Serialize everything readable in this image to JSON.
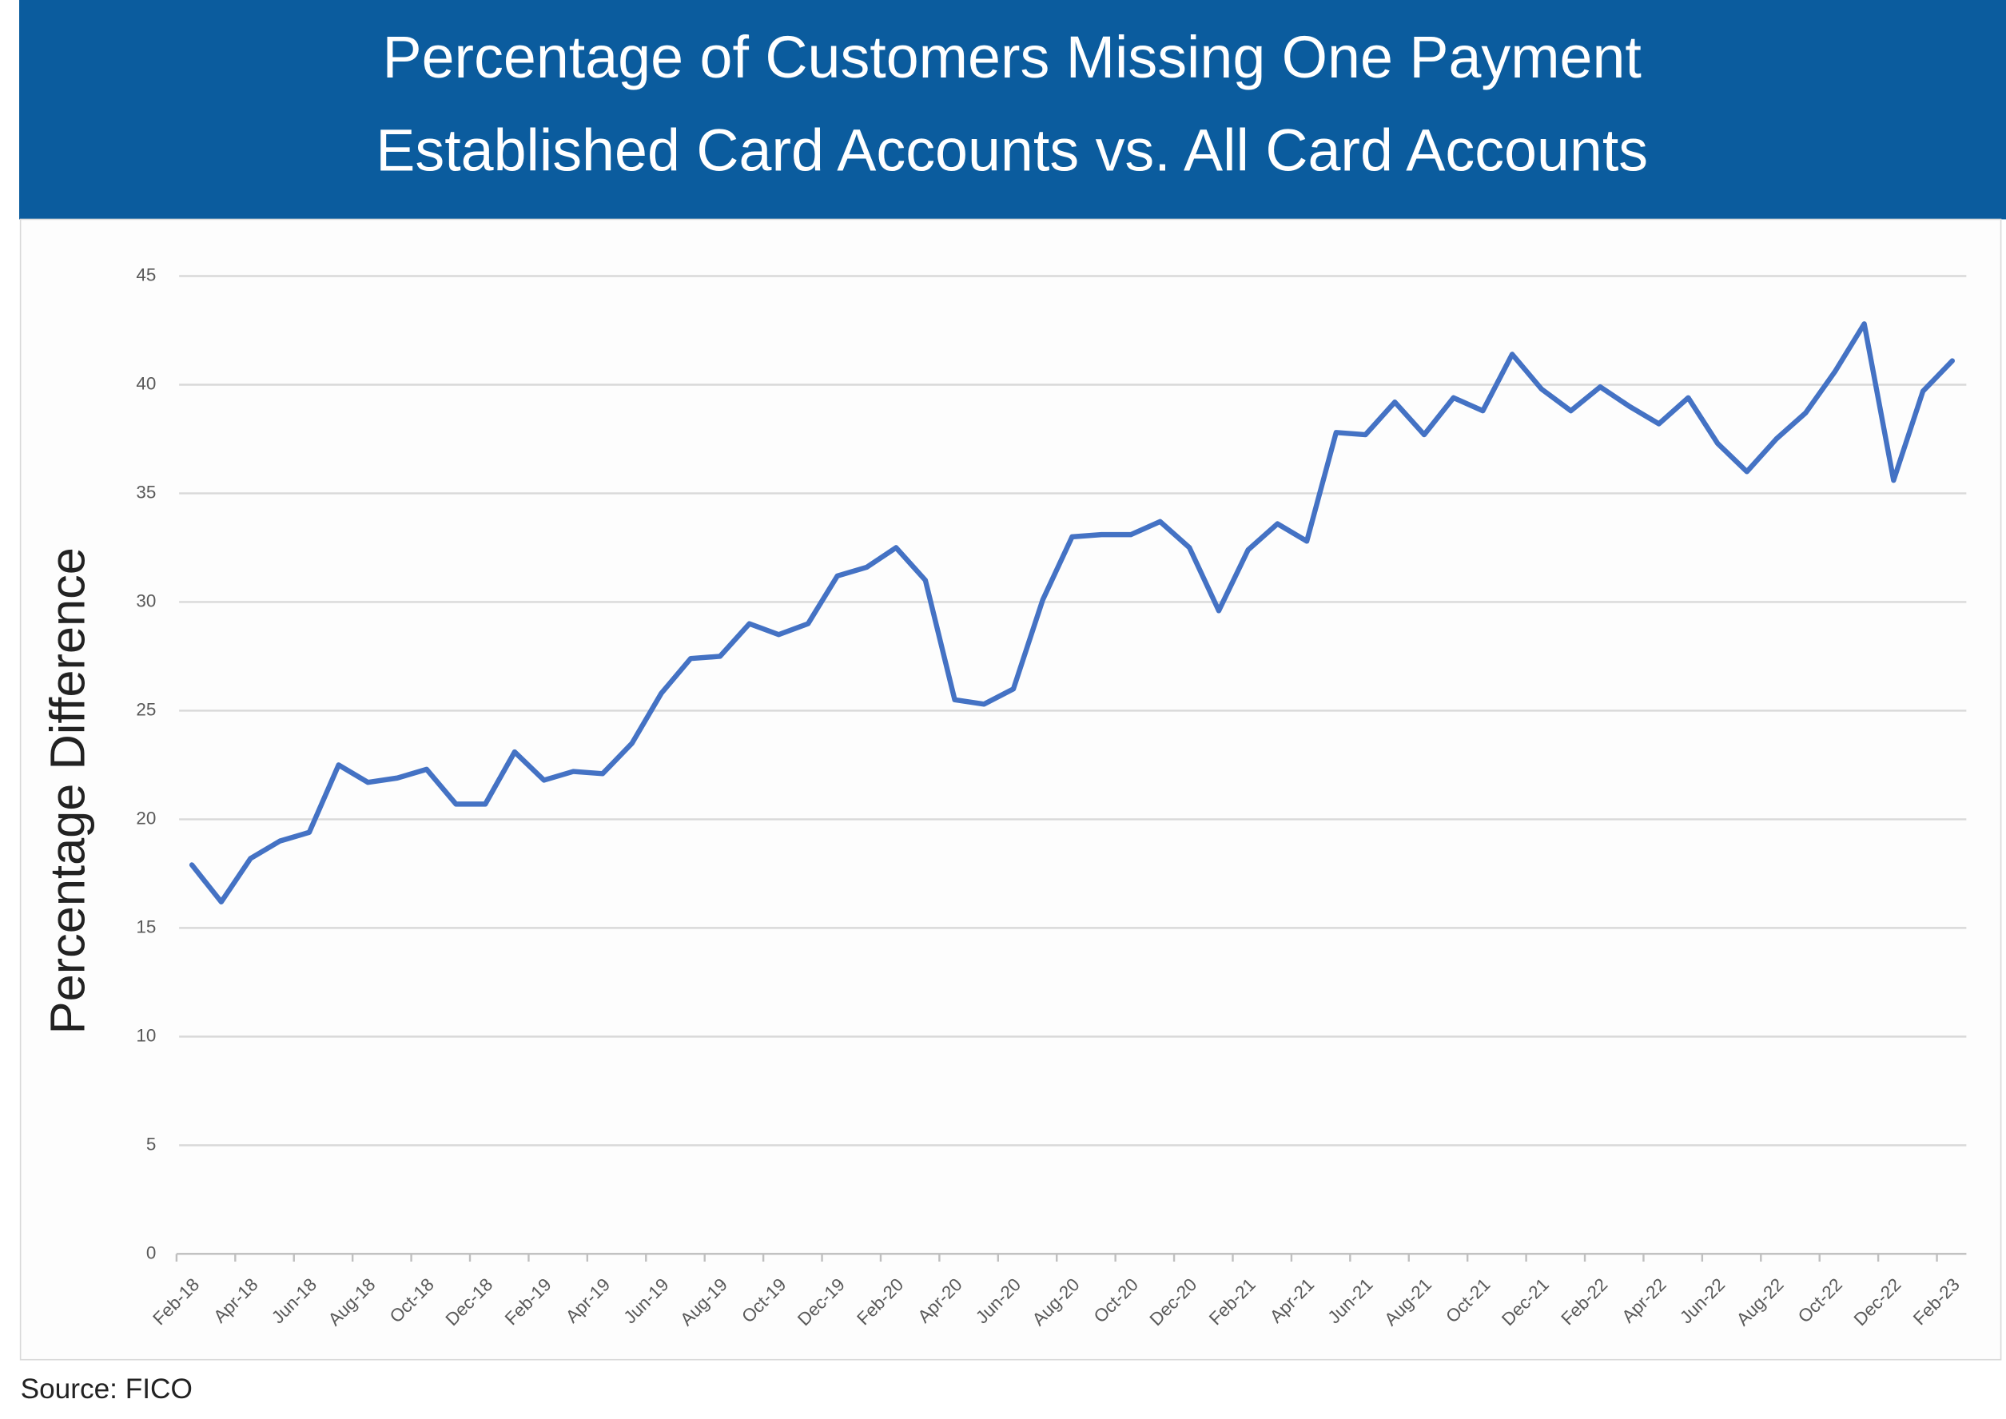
{
  "chart_data": {
    "type": "line",
    "title": "Percentage of Customers Missing One Payment",
    "subtitle": "Established Card Accounts vs. All Card Accounts",
    "y_label": "Percentage Difference",
    "source": "Source: FICO",
    "categories": [
      "Feb-18",
      null,
      "Apr-18",
      null,
      "Jun-18",
      null,
      "Aug-18",
      null,
      "Oct-18",
      null,
      "Dec-18",
      null,
      "Feb-19",
      null,
      "Apr-19",
      null,
      "Jun-19",
      null,
      "Aug-19",
      null,
      "Oct-19",
      null,
      "Dec-19",
      null,
      "Feb-20",
      null,
      "Apr-20",
      null,
      "Jun-20",
      null,
      "Aug-20",
      null,
      "Oct-20",
      null,
      "Dec-20",
      null,
      "Feb-21",
      null,
      "Apr-21",
      null,
      "Jun-21",
      null,
      "Aug-21",
      null,
      "Oct-21",
      null,
      "Dec-21",
      null,
      "Feb-22",
      null,
      "Apr-22",
      null,
      "Jun-22",
      null,
      "Aug-22",
      null,
      "Oct-22",
      null,
      "Dec-22",
      null,
      "Feb-23"
    ],
    "series": [
      {
        "color": "#4472c4",
        "values": [
          17.9,
          16.2,
          18.2,
          19.0,
          19.4,
          22.5,
          21.7,
          21.9,
          22.3,
          20.7,
          20.7,
          23.1,
          21.8,
          22.2,
          22.1,
          23.5,
          25.8,
          27.4,
          27.5,
          29.0,
          28.5,
          29.0,
          31.2,
          31.6,
          32.5,
          31.0,
          25.5,
          25.3,
          26.0,
          30.1,
          33.0,
          33.1,
          33.1,
          33.7,
          32.5,
          29.6,
          32.4,
          33.6,
          32.8,
          37.8,
          37.7,
          39.2,
          37.7,
          39.4,
          38.8,
          41.4,
          39.8,
          38.8,
          39.9,
          39.0,
          38.2,
          39.4,
          37.3,
          36.0,
          37.5,
          38.7,
          40.6,
          42.8,
          35.6,
          39.7,
          41.1
        ]
      }
    ],
    "ylim": [
      0,
      45
    ],
    "yticks": [
      0,
      5,
      10,
      15,
      20,
      25,
      30,
      35,
      40,
      45
    ],
    "grid": true
  }
}
